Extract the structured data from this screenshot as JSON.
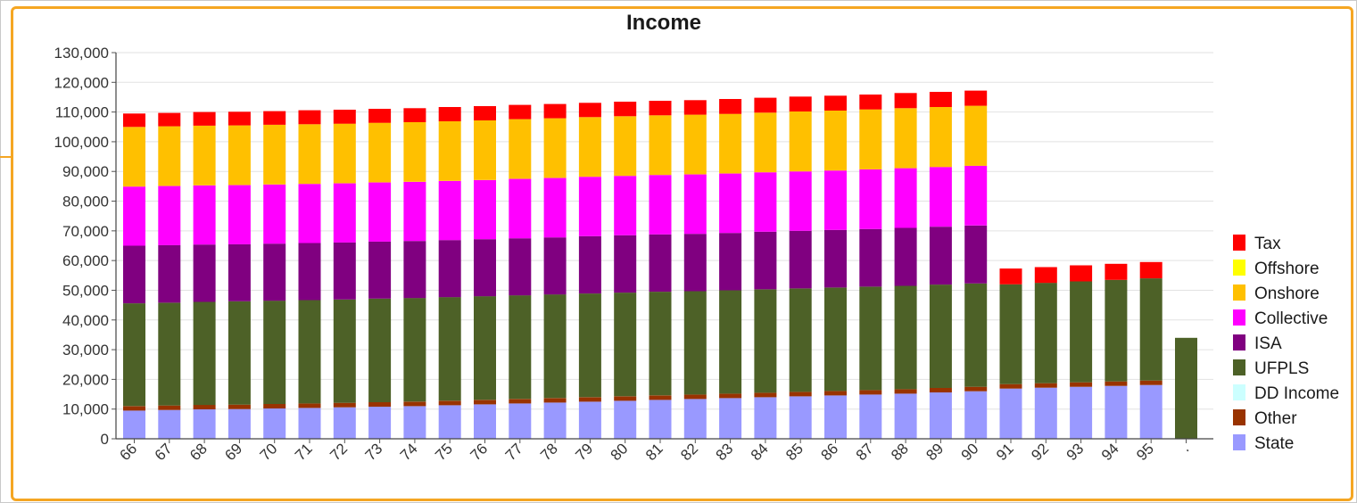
{
  "chart_data": {
    "type": "bar",
    "stacked": true,
    "title": "Income",
    "xlabel": "",
    "ylabel": "",
    "ylim": [
      0,
      130000
    ],
    "yticks": [
      "0",
      "10,000",
      "20,000",
      "30,000",
      "40,000",
      "50,000",
      "60,000",
      "70,000",
      "80,000",
      "90,000",
      "100,000",
      "110,000",
      "120,000",
      "130,000"
    ],
    "grid": true,
    "legend_position": "right",
    "categories": [
      "66",
      "67",
      "68",
      "69",
      "70",
      "71",
      "72",
      "73",
      "74",
      "75",
      "76",
      "77",
      "78",
      "79",
      "80",
      "81",
      "82",
      "83",
      "84",
      "85",
      "86",
      "87",
      "88",
      "89",
      "90",
      "91",
      "92",
      "93",
      "94",
      "95",
      "."
    ],
    "series": [
      {
        "name": "State",
        "color": "#9999ff",
        "values": [
          9500,
          9700,
          9900,
          10000,
          10200,
          10400,
          10600,
          10800,
          11000,
          11300,
          11600,
          11900,
          12200,
          12500,
          12800,
          13100,
          13400,
          13700,
          14000,
          14300,
          14600,
          14900,
          15200,
          15600,
          16000,
          16900,
          17200,
          17500,
          17800,
          18100,
          0
        ]
      },
      {
        "name": "Other",
        "color": "#993300",
        "values": [
          1500,
          1500,
          1500,
          1500,
          1500,
          1500,
          1500,
          1500,
          1500,
          1500,
          1500,
          1500,
          1500,
          1500,
          1500,
          1500,
          1500,
          1500,
          1500,
          1500,
          1500,
          1500,
          1500,
          1500,
          1500,
          1500,
          1500,
          1500,
          1500,
          1500,
          0
        ]
      },
      {
        "name": "DD Income",
        "color": "#ccffff",
        "values": [
          0,
          0,
          0,
          0,
          0,
          0,
          0,
          0,
          0,
          0,
          0,
          0,
          0,
          0,
          0,
          0,
          0,
          0,
          0,
          0,
          0,
          0,
          0,
          0,
          0,
          0,
          0,
          0,
          0,
          0,
          0
        ]
      },
      {
        "name": "UFPLS",
        "color": "#4d6127",
        "values": [
          34600,
          34600,
          34700,
          34800,
          34800,
          34800,
          34800,
          34900,
          34900,
          34900,
          34900,
          34900,
          34900,
          34900,
          34900,
          34900,
          34800,
          34800,
          34800,
          34800,
          34800,
          34800,
          34800,
          34800,
          34800,
          33600,
          33800,
          34000,
          34200,
          34400,
          34000
        ]
      },
      {
        "name": "ISA",
        "color": "#800080",
        "values": [
          19400,
          19400,
          19300,
          19200,
          19200,
          19200,
          19200,
          19200,
          19200,
          19200,
          19200,
          19200,
          19200,
          19300,
          19300,
          19300,
          19300,
          19300,
          19400,
          19400,
          19400,
          19400,
          19500,
          19500,
          19500,
          0,
          0,
          0,
          0,
          0,
          0
        ]
      },
      {
        "name": "Collective",
        "color": "#ff00ff",
        "values": [
          19900,
          19900,
          19900,
          19900,
          19900,
          19900,
          19900,
          19900,
          19900,
          19900,
          19900,
          20000,
          20000,
          20000,
          20000,
          20000,
          20000,
          20000,
          20000,
          20000,
          20000,
          20100,
          20100,
          20100,
          20100,
          0,
          0,
          0,
          0,
          0,
          0
        ]
      },
      {
        "name": "Onshore",
        "color": "#ffc000",
        "values": [
          20100,
          20100,
          20100,
          20100,
          20100,
          20100,
          20100,
          20100,
          20100,
          20100,
          20100,
          20100,
          20100,
          20100,
          20100,
          20100,
          20100,
          20100,
          20100,
          20200,
          20200,
          20200,
          20200,
          20200,
          20200,
          0,
          0,
          0,
          0,
          0,
          0
        ]
      },
      {
        "name": "Offshore",
        "color": "#ffff00",
        "values": [
          0,
          0,
          0,
          0,
          0,
          0,
          0,
          0,
          0,
          0,
          0,
          0,
          0,
          0,
          0,
          0,
          0,
          0,
          0,
          0,
          0,
          0,
          0,
          0,
          0,
          0,
          0,
          0,
          0,
          0,
          0
        ]
      },
      {
        "name": "Tax",
        "color": "#ff0000",
        "values": [
          4500,
          4500,
          4600,
          4600,
          4600,
          4700,
          4700,
          4700,
          4700,
          4800,
          4800,
          4800,
          4800,
          4800,
          4900,
          4900,
          4900,
          5000,
          5000,
          5000,
          5000,
          5000,
          5100,
          5100,
          5100,
          5300,
          5300,
          5400,
          5400,
          5500,
          0
        ]
      }
    ],
    "legend_order": [
      "Tax",
      "Offshore",
      "Onshore",
      "Collective",
      "ISA",
      "UFPLS",
      "DD Income",
      "Other",
      "State"
    ]
  }
}
